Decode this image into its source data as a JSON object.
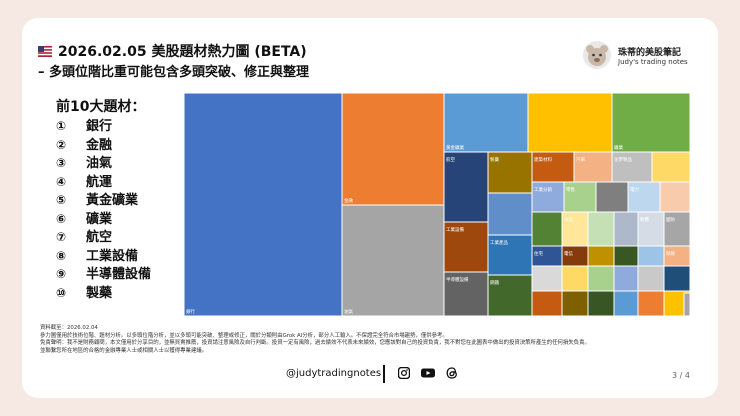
{
  "header": {
    "title": "2026.02.05 美股題材熱力圖 (BETA)",
    "subtitle": "– 多頭位階比重可能包含多頭突破、修正與整理",
    "flag_icon": "us-flag-icon"
  },
  "brand": {
    "name": "珠蒂的美股筆記",
    "name_en": "Judy's trading notes",
    "logo_icon": "bear-logo-icon"
  },
  "top_themes": {
    "heading": "前10大題材：",
    "items": [
      {
        "num": "①",
        "label": "銀行"
      },
      {
        "num": "②",
        "label": "金融"
      },
      {
        "num": "③",
        "label": "油氣"
      },
      {
        "num": "④",
        "label": "航運"
      },
      {
        "num": "⑤",
        "label": "黃金礦業"
      },
      {
        "num": "⑥",
        "label": "礦業"
      },
      {
        "num": "⑦",
        "label": "航空"
      },
      {
        "num": "⑧",
        "label": "工業設備"
      },
      {
        "num": "⑨",
        "label": "半導體設備"
      },
      {
        "num": "⑩",
        "label": "製藥"
      }
    ]
  },
  "treemap": {
    "tiles": [
      {
        "label": "銀行",
        "color": "#4472c4"
      },
      {
        "label": "金融",
        "color": "#ed7d31"
      },
      {
        "label": "油氣",
        "color": "#a5a5a5"
      },
      {
        "label": "黃金礦業",
        "color": "#5b9bd5"
      },
      {
        "label": "",
        "color": "#ffc000"
      },
      {
        "label": "礦業",
        "color": "#70ad47"
      },
      {
        "label": "航空",
        "color": "#264478"
      },
      {
        "label": "工業設備",
        "color": "#9e480e"
      },
      {
        "label": "半導體設備",
        "color": "#636363"
      },
      {
        "label": "製藥",
        "color": "#997300"
      },
      {
        "label": "",
        "color": "#5f8ec8"
      },
      {
        "label": "工業產品",
        "color": "#2e75b6"
      },
      {
        "label": "鋼鐵",
        "color": "#43682b"
      },
      {
        "label": "建築材料",
        "color": "#c55a11"
      },
      {
        "label": "汽車",
        "color": "#f4b183"
      },
      {
        "label": "化學製品",
        "color": "#bfbfbf"
      },
      {
        "label": "",
        "color": "#ffd966"
      },
      {
        "label": "工業分銷",
        "color": "#8faadc"
      },
      {
        "label": "零售",
        "color": "#a9d18e"
      },
      {
        "label": "",
        "color": "#7f7f7f"
      },
      {
        "label": "電力",
        "color": "#bdd7ee"
      },
      {
        "label": "",
        "color": "#f8cbad"
      },
      {
        "label": "",
        "color": "#548235"
      },
      {
        "label": "食品",
        "color": "#ffe699"
      },
      {
        "label": "",
        "color": "#c5e0b4"
      },
      {
        "label": "",
        "color": "#adb9ca"
      },
      {
        "label": "軟體",
        "color": "#d6dce5"
      },
      {
        "label": "國防",
        "color": "#a6a6a6"
      },
      {
        "label": "住宅",
        "color": "#2f5597"
      },
      {
        "label": "電信",
        "color": "#843c0c"
      },
      {
        "label": "",
        "color": "#bf9000"
      },
      {
        "label": "",
        "color": "#385723"
      },
      {
        "label": "",
        "color": "#9dc3e6"
      },
      {
        "label": "保險",
        "color": "#f4b183"
      },
      {
        "label": "",
        "color": "#d9d9d9"
      },
      {
        "label": "",
        "color": "#ffd966"
      },
      {
        "label": "",
        "color": "#a9d18e"
      },
      {
        "label": "",
        "color": "#8faadc"
      },
      {
        "label": "",
        "color": "#c9c9c9"
      },
      {
        "label": "",
        "color": "#1f4e79"
      },
      {
        "label": "",
        "color": "#c55a11"
      },
      {
        "label": "",
        "color": "#7f6000"
      },
      {
        "label": "",
        "color": "#375623"
      },
      {
        "label": "",
        "color": "#5b9bd5"
      },
      {
        "label": "",
        "color": "#ed7d31"
      },
      {
        "label": "",
        "color": "#ffc000"
      },
      {
        "label": "",
        "color": "#70ad47"
      },
      {
        "label": "",
        "color": "#4472c4"
      },
      {
        "label": "",
        "color": "#a5a5a5"
      },
      {
        "label": "",
        "color": "#bdd7ee"
      },
      {
        "label": "",
        "color": "#f8cbad"
      },
      {
        "label": "",
        "color": "#264478"
      },
      {
        "label": "",
        "color": "#9e480e"
      }
    ]
  },
  "source": {
    "lines": [
      "資料截至：2026.02.04",
      "參力圖僅用於技術位階、題材分析。以多頭位階分析，並以多頭可能突破、整理或修正，關於分類則由Grok AI分析，部分人工輸入。不保證完全符合市場趨勢，僅供參考。",
      "免責聲明：我不是財務顧問，本文僅用於分享目的，並無買賣推薦，投資請注意風險及自行判斷。投資一定有風險，過去績效不代表未來績效，您應該對自己的投資負責，我不對您在此圖表中做出的投資決策所產生的任何損失負責。",
      "並聯繫您所在地區的合格的金融專業人士或相關人士以獲得專業建議。"
    ]
  },
  "footer": {
    "handle": "@judytradingnotes",
    "social_icons": [
      "instagram-icon",
      "youtube-icon",
      "threads-icon"
    ],
    "page": "3 / 4"
  }
}
